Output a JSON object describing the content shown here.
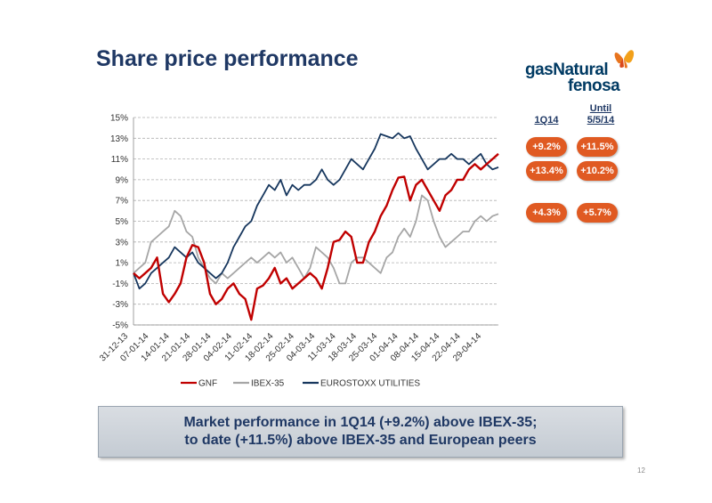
{
  "page": {
    "title": "Share price performance",
    "logo_line1": "gasNatural",
    "logo_line2": "fenosa",
    "banner_line1": "Market performance in 1Q14 (+9.2%) above IBEX-35;",
    "banner_line2": "to date (+11.5%) above IBEX-35 and European peers",
    "page_number": "12"
  },
  "summary": {
    "col1_header": "1Q14",
    "col2_header_line1": "Until",
    "col2_header_line2": "5/5/14",
    "rows": [
      {
        "q1": "+9.2%",
        "ytd": "+11.5%"
      },
      {
        "q1": "+13.4%",
        "ytd": "+10.2%"
      },
      {
        "q1": "+4.3%",
        "ytd": "+5.7%"
      }
    ],
    "pill_color": "#e05a22"
  },
  "chart_data": {
    "type": "line",
    "xlabel": "",
    "ylabel": "",
    "ylim": [
      -5,
      15
    ],
    "ytick_labels": [
      "15%",
      "13%",
      "11%",
      "9%",
      "7%",
      "5%",
      "3%",
      "1%",
      "-1%",
      "-3%",
      "-5%"
    ],
    "xtick_labels": [
      "31-12-13",
      "07-01-14",
      "14-01-14",
      "21-01-14",
      "28-01-14",
      "04-02-14",
      "11-02-14",
      "18-02-14",
      "25-02-14",
      "04-03-14",
      "11-03-14",
      "18-03-14",
      "25-03-14",
      "01-04-14",
      "08-04-14",
      "15-04-14",
      "22-04-14",
      "29-04-14"
    ],
    "grid": true,
    "legend_position": "bottom",
    "series": [
      {
        "name": "GNF",
        "color": "#c00000",
        "values": [
          0.0,
          -0.5,
          0.0,
          0.5,
          1.5,
          -2.0,
          -2.8,
          -2.0,
          -1.0,
          1.5,
          2.7,
          2.5,
          1.0,
          -2.0,
          -3.0,
          -2.5,
          -1.5,
          -1.0,
          -2.0,
          -2.5,
          -4.5,
          -1.5,
          -1.2,
          -0.5,
          0.5,
          -1.0,
          -0.5,
          -1.5,
          -1.0,
          -0.5,
          0.0,
          -0.5,
          -1.5,
          0.5,
          3.0,
          3.2,
          4.0,
          3.5,
          1.0,
          1.0,
          3.0,
          4.0,
          5.5,
          6.5,
          8.0,
          9.2,
          9.3,
          7.0,
          8.5,
          9.0,
          8.0,
          7.0,
          6.0,
          7.5,
          8.0,
          9.0,
          9.0,
          10.0,
          10.5,
          10.0,
          10.5,
          11.0,
          11.5
        ]
      },
      {
        "name": "IBEX-35",
        "color": "#a6a6a6",
        "values": [
          0.0,
          0.5,
          1.0,
          3.0,
          3.5,
          4.0,
          4.5,
          6.0,
          5.5,
          4.0,
          3.5,
          1.5,
          0.5,
          -0.5,
          -1.0,
          0.0,
          -0.5,
          0.0,
          0.5,
          1.0,
          1.5,
          1.0,
          1.5,
          2.0,
          1.5,
          2.0,
          1.0,
          1.5,
          0.5,
          -0.5,
          0.5,
          2.5,
          2.0,
          1.5,
          0.5,
          -1.0,
          -1.0,
          1.0,
          1.5,
          1.5,
          1.0,
          0.5,
          0.0,
          1.5,
          2.0,
          3.5,
          4.3,
          3.5,
          5.0,
          7.5,
          7.0,
          5.0,
          3.5,
          2.5,
          3.0,
          3.5,
          4.0,
          4.0,
          5.0,
          5.5,
          5.0,
          5.5,
          5.7
        ]
      },
      {
        "name": "EUROSTOXX UTILITIES",
        "color": "#17375e",
        "values": [
          0.0,
          -1.5,
          -1.0,
          0.0,
          0.5,
          1.0,
          1.5,
          2.5,
          2.0,
          1.5,
          2.0,
          1.0,
          0.5,
          0.0,
          -0.5,
          0.0,
          1.0,
          2.5,
          3.5,
          4.5,
          5.0,
          6.5,
          7.5,
          8.5,
          8.0,
          9.0,
          7.5,
          8.5,
          8.0,
          8.5,
          8.5,
          9.0,
          10.0,
          9.0,
          8.5,
          9.0,
          10.0,
          11.0,
          10.5,
          10.0,
          11.0,
          12.0,
          13.4,
          13.2,
          13.0,
          13.5,
          13.0,
          13.2,
          12.0,
          11.0,
          10.0,
          10.5,
          11.0,
          11.0,
          11.5,
          11.0,
          11.0,
          10.5,
          11.0,
          11.5,
          10.5,
          10.0,
          10.2
        ]
      }
    ]
  }
}
